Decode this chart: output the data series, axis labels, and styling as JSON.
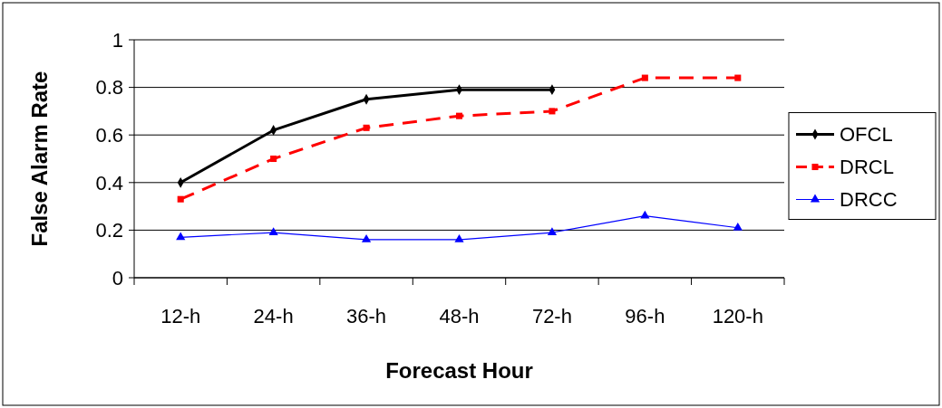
{
  "chart_data": {
    "type": "line",
    "xlabel": "Forecast Hour",
    "ylabel": "False Alarm Rate",
    "categories": [
      "12-h",
      "24-h",
      "36-h",
      "48-h",
      "72-h",
      "96-h",
      "120-h"
    ],
    "ylim": [
      0,
      1
    ],
    "yticks": [
      {
        "value": 0,
        "label": "0"
      },
      {
        "value": 0.2,
        "label": "0.2"
      },
      {
        "value": 0.4,
        "label": "0.4"
      },
      {
        "value": 0.6,
        "label": "0.6"
      },
      {
        "value": 0.8,
        "label": "0.8"
      },
      {
        "value": 1,
        "label": "1"
      }
    ],
    "grid": "y",
    "legend": "right",
    "series": [
      {
        "name": "OFCL",
        "color": "#000000",
        "marker": "diamond",
        "line_style": "solid",
        "values": [
          0.4,
          0.62,
          0.75,
          0.79,
          0.79,
          null,
          null
        ]
      },
      {
        "name": "DRCL",
        "color": "#ff0000",
        "marker": "square",
        "line_style": "dashed",
        "values": [
          0.33,
          0.5,
          0.63,
          0.68,
          0.7,
          0.84,
          0.84
        ]
      },
      {
        "name": "DRCC",
        "color": "#0000ff",
        "marker": "triangle",
        "line_style": "solid",
        "values": [
          0.17,
          0.19,
          0.16,
          0.16,
          0.19,
          0.26,
          0.21
        ]
      }
    ]
  }
}
